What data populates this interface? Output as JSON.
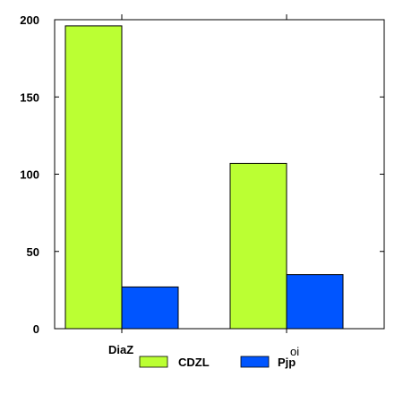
{
  "chart_data": {
    "type": "bar",
    "categories": [
      "DiaZ",
      "oi"
    ],
    "series": [
      {
        "name": "CDZL",
        "values": [
          196,
          107
        ],
        "color": "#bbff33"
      },
      {
        "name": "Pjp",
        "values": [
          27,
          35
        ],
        "color": "#0055ff"
      }
    ],
    "ylim": [
      0,
      200
    ],
    "y_ticks": [
      0,
      50,
      100,
      150,
      200
    ],
    "grid": false,
    "legend_position": "bottom"
  }
}
